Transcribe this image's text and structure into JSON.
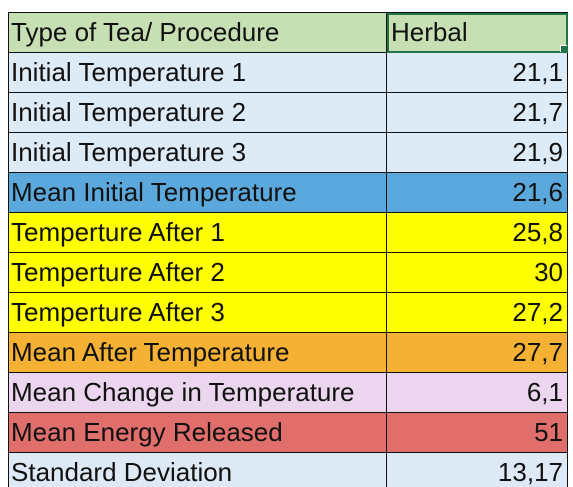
{
  "table": {
    "header": {
      "label": "Type of Tea/ Procedure",
      "value": "Herbal",
      "color": "#c6e0b4"
    },
    "rows": [
      {
        "label": "Initial Temperature 1",
        "value": "21,1",
        "color": "#ddebf7"
      },
      {
        "label": "Initial Temperature 2",
        "value": "21,7",
        "color": "#ddebf7"
      },
      {
        "label": "Initial Temperature 3",
        "value": "21,9",
        "color": "#ddebf7"
      },
      {
        "label": "Mean Initial Temperature",
        "value": "21,6",
        "color": "#5ba9dc"
      },
      {
        "label": "Temperture After 1",
        "value": "25,8",
        "color": "#ffff00"
      },
      {
        "label": "Temperture After 2",
        "value": "30",
        "color": "#ffff00"
      },
      {
        "label": "Temperture After 3",
        "value": "27,2",
        "color": "#ffff00"
      },
      {
        "label": "Mean After Temperature",
        "value": "27,7",
        "color": "#f4b133"
      },
      {
        "label": "Mean Change in Temperature",
        "value": "6,1",
        "color": "#ecd5ee"
      },
      {
        "label": "Mean Energy Released",
        "value": "51",
        "color": "#e06e6a"
      },
      {
        "label": "Standard Deviation",
        "value": "13,17",
        "color": "#dde9f5"
      }
    ]
  },
  "selection": {
    "cell": "Herbal",
    "border_color": "#217346"
  }
}
